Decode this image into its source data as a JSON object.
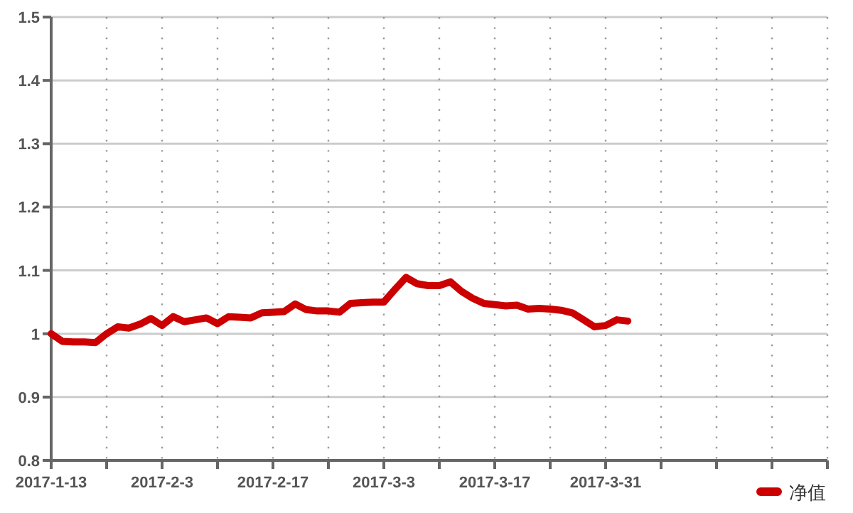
{
  "chart_data": {
    "type": "line",
    "categories": [
      "2017-1-13",
      null,
      null,
      null,
      null,
      null,
      null,
      null,
      null,
      null,
      "2017-2-3",
      null,
      null,
      null,
      null,
      null,
      null,
      null,
      null,
      null,
      "2017-2-17",
      null,
      null,
      null,
      null,
      null,
      null,
      null,
      null,
      null,
      "2017-3-3",
      null,
      null,
      null,
      null,
      null,
      null,
      null,
      null,
      null,
      "2017-3-17",
      null,
      null,
      null,
      null,
      null,
      null,
      null,
      null,
      null,
      "2017-3-31",
      null,
      null,
      null,
      null,
      null,
      null,
      null,
      null,
      null,
      null,
      null,
      null,
      null,
      null,
      null,
      null,
      null,
      null,
      null,
      null
    ],
    "series": [
      {
        "name": "净值",
        "color": "#cc0000",
        "values": [
          1.0,
          0.988,
          0.987,
          0.987,
          0.986,
          1.0,
          1.011,
          1.009,
          1.015,
          1.024,
          1.013,
          1.027,
          1.019,
          1.022,
          1.025,
          1.016,
          1.027,
          1.026,
          1.025,
          1.033,
          1.034,
          1.035,
          1.047,
          1.038,
          1.036,
          1.036,
          1.034,
          1.048,
          1.049,
          1.05,
          1.05,
          1.07,
          1.089,
          1.079,
          1.076,
          1.076,
          1.082,
          1.067,
          1.056,
          1.048,
          1.046,
          1.044,
          1.045,
          1.039,
          1.04,
          1.039,
          1.037,
          1.033,
          1.022,
          1.011,
          1.013,
          1.022,
          1.02,
          null,
          null,
          null,
          null,
          null,
          null,
          null,
          null,
          null,
          null,
          null,
          null,
          null,
          null,
          null,
          null,
          null,
          null
        ]
      }
    ],
    "ylim": [
      0.8,
      1.5
    ],
    "yticks": [
      0.8,
      0.9,
      1,
      1.1,
      1.2,
      1.3,
      1.4,
      1.5
    ],
    "grid": true,
    "legend": "bottom right"
  }
}
